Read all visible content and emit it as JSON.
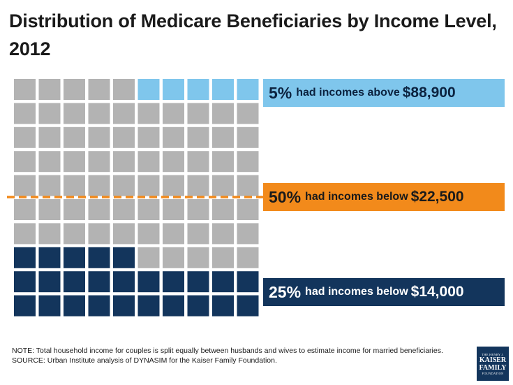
{
  "title": "Distribution of Medicare Beneficiaries by Income Level, 2012",
  "chart_data": {
    "type": "waffle",
    "grid": {
      "rows": 10,
      "cols": 10
    },
    "segments": [
      {
        "name": "top",
        "percent": 5,
        "color": "#7fc6ec"
      },
      {
        "name": "middle",
        "percent": 70,
        "color": "#b3b3b3"
      },
      {
        "name": "bottom",
        "percent": 25,
        "color": "#13355c"
      }
    ],
    "median_line": {
      "percent": 50,
      "color": "#f28a1b"
    },
    "callouts": [
      {
        "pct": "5%",
        "text": "had incomes above",
        "amount": "$88,900"
      },
      {
        "pct": "50%",
        "text": "had incomes below",
        "amount": "$22,500"
      },
      {
        "pct": "25%",
        "text": "had incomes below",
        "amount": "$14,000"
      }
    ]
  },
  "note": {
    "line1": "NOTE:  Total household income for couples is split equally between husbands and wives to estimate income for married beneficiaries.",
    "line2": "SOURCE: Urban Institute analysis of DYNASIM for the Kaiser Family Foundation."
  },
  "logo": {
    "line1": "THE HENRY J.",
    "line2a": "KAISER",
    "line2b": "FAMILY",
    "line3": "FOUNDATION"
  }
}
